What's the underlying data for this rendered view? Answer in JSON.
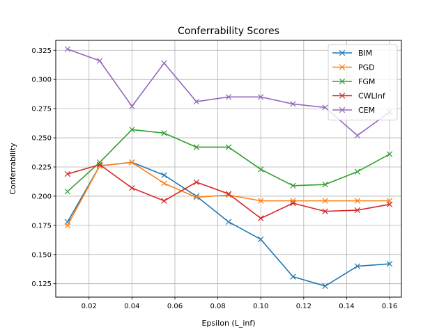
{
  "chart_data": {
    "type": "line",
    "title": "Conferrability Scores",
    "xlabel": "Epsilon (L_inf)",
    "ylabel": "Conferrability",
    "xlim": [
      0.0045,
      0.1655
    ],
    "ylim": [
      0.1135,
      0.3335
    ],
    "xticks": [
      0.02,
      0.04,
      0.06,
      0.08,
      0.1,
      0.12,
      0.14,
      0.16
    ],
    "xtick_labels": [
      "0.02",
      "0.04",
      "0.06",
      "0.08",
      "0.10",
      "0.12",
      "0.14",
      "0.16"
    ],
    "yticks": [
      0.125,
      0.15,
      0.175,
      0.2,
      0.225,
      0.25,
      0.275,
      0.3,
      0.325
    ],
    "ytick_labels": [
      "0.125",
      "0.150",
      "0.175",
      "0.200",
      "0.225",
      "0.250",
      "0.275",
      "0.300",
      "0.325"
    ],
    "grid": true,
    "legend_position": "top-right",
    "marker": "x",
    "x": [
      0.01,
      0.025,
      0.04,
      0.055,
      0.07,
      0.085,
      0.1,
      0.115,
      0.13,
      0.145,
      0.16
    ],
    "series": [
      {
        "name": "BIM",
        "color": "#1f77b4",
        "values": [
          0.178,
          0.226,
          0.229,
          0.218,
          0.2,
          0.178,
          0.163,
          0.131,
          0.123,
          0.14,
          0.142
        ]
      },
      {
        "name": "PGD",
        "color": "#ff7f0e",
        "values": [
          0.175,
          0.226,
          0.229,
          0.211,
          0.199,
          0.201,
          0.196,
          0.196,
          0.196,
          0.196,
          0.196
        ]
      },
      {
        "name": "FGM",
        "color": "#2ca02c",
        "values": [
          0.204,
          0.229,
          0.257,
          0.254,
          0.242,
          0.242,
          0.223,
          0.209,
          0.21,
          0.221,
          0.236
        ]
      },
      {
        "name": "CWLInf",
        "color": "#d62728",
        "values": [
          0.219,
          0.227,
          0.207,
          0.196,
          0.212,
          0.202,
          0.181,
          0.194,
          0.187,
          0.188,
          0.193
        ]
      },
      {
        "name": "CEM",
        "color": "#9467bd",
        "values": [
          0.326,
          0.316,
          0.277,
          0.314,
          0.281,
          0.285,
          0.285,
          0.279,
          0.276,
          0.252,
          0.272
        ]
      }
    ]
  }
}
